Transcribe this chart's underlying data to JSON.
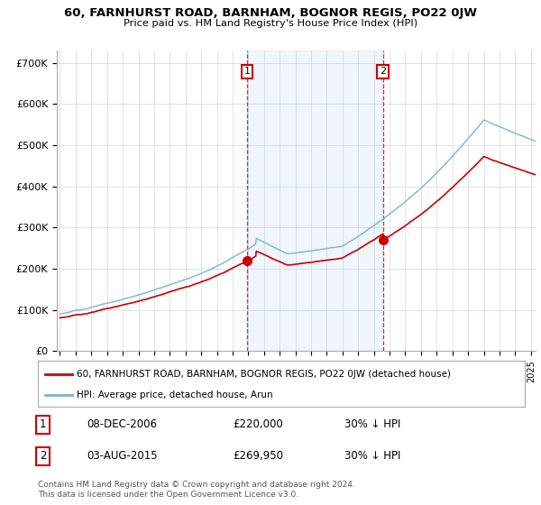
{
  "title1": "60, FARNHURST ROAD, BARNHAM, BOGNOR REGIS, PO22 0JW",
  "title2": "Price paid vs. HM Land Registry's House Price Index (HPI)",
  "hpi_color": "#7ab3d4",
  "price_color": "#cc0000",
  "background_color": "#ffffff",
  "grid_color": "#d0d8e4",
  "shade_color": "#ddeeff",
  "ylim_top": 700000,
  "yticks": [
    0,
    100000,
    200000,
    300000,
    400000,
    500000,
    600000,
    700000
  ],
  "ytick_labels": [
    "£0",
    "£100K",
    "£200K",
    "£300K",
    "£400K",
    "£500K",
    "£600K",
    "£700K"
  ],
  "marker1_x": 2006.92,
  "marker1_y": 220000,
  "marker2_x": 2015.58,
  "marker2_y": 269950,
  "marker1_date": "08-DEC-2006",
  "marker1_price": "£220,000",
  "marker1_hpi": "30% ↓ HPI",
  "marker2_date": "03-AUG-2015",
  "marker2_price": "£269,950",
  "marker2_hpi": "30% ↓ HPI",
  "legend_line1": "60, FARNHURST ROAD, BARNHAM, BOGNOR REGIS, PO22 0JW (detached house)",
  "legend_line2": "HPI: Average price, detached house, Arun",
  "footer1": "Contains HM Land Registry data © Crown copyright and database right 2024.",
  "footer2": "This data is licensed under the Open Government Licence v3.0.",
  "xmin": 1994.8,
  "xmax": 2025.3
}
